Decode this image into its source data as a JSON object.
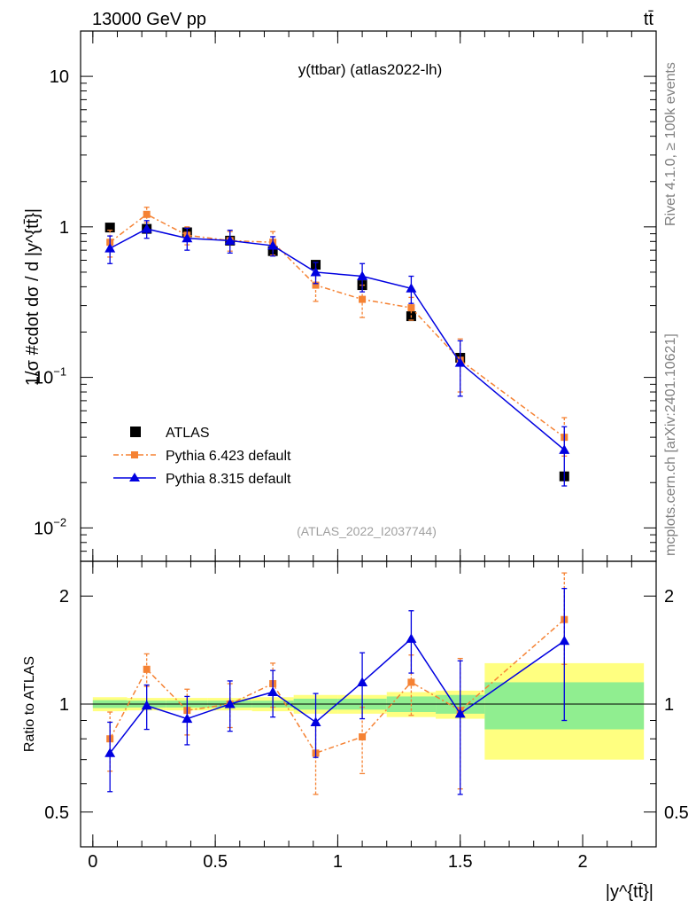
{
  "header": {
    "left": "13000 GeV pp",
    "right": "tt̄"
  },
  "side_labels": {
    "top": "Rivet 4.1.0, ≥ 100k events",
    "bottom": "mcplots.cern.ch [arXiv:2401.10621]"
  },
  "chart_data": {
    "type": "scatter",
    "title": "y(ttbar) (atlas2022-lh)",
    "watermark": "(ATLAS_2022_I2037744)",
    "ylabel": "1/σ #cdot dσ / d |y^{tt̄}|",
    "xlabel": "|y^{tt̄}|",
    "ratio_ylabel": "Ratio to ATLAS",
    "xlim": [
      -0.05,
      2.3
    ],
    "ylim": [
      0.006,
      20
    ],
    "ratio_ylim": [
      0.4,
      2.5
    ],
    "y_ticks": [
      {
        "v": 10,
        "label": "10",
        "sup": ""
      },
      {
        "v": 1,
        "label": "1",
        "sup": ""
      },
      {
        "v": 0.1,
        "label": "10",
        "sup": "−1"
      },
      {
        "v": 0.01,
        "label": "10",
        "sup": "−2"
      }
    ],
    "x_ticks": [
      {
        "v": 0,
        "label": "0"
      },
      {
        "v": 0.5,
        "label": "0.5"
      },
      {
        "v": 1,
        "label": "1"
      },
      {
        "v": 1.5,
        "label": "1.5"
      },
      {
        "v": 2,
        "label": "2"
      }
    ],
    "ratio_ticks": [
      {
        "v": 0.5,
        "label": "0.5"
      },
      {
        "v": 1,
        "label": "1"
      },
      {
        "v": 2,
        "label": "2"
      }
    ],
    "bin_edges": [
      0,
      0.14,
      0.3,
      0.47,
      0.65,
      0.82,
      1.0,
      1.2,
      1.4,
      1.6,
      2.25
    ],
    "x": [
      0.07,
      0.22,
      0.385,
      0.56,
      0.735,
      0.91,
      1.1,
      1.3,
      1.5,
      1.925
    ],
    "data_band": {
      "inner": [
        0.025,
        0.022,
        0.022,
        0.022,
        0.022,
        0.035,
        0.035,
        0.05,
        0.06,
        0.15
      ],
      "outer": [
        0.045,
        0.04,
        0.04,
        0.04,
        0.045,
        0.06,
        0.06,
        0.08,
        0.09,
        0.3
      ]
    },
    "series": [
      {
        "name": "ATLAS",
        "color": "#000000",
        "values": [
          0.99,
          0.97,
          0.92,
          0.81,
          0.69,
          0.56,
          0.41,
          0.255,
          0.135,
          0.022
        ]
      },
      {
        "name": "Pythia 6.423 default",
        "color": "#f58233",
        "values": [
          0.79,
          1.21,
          0.88,
          0.81,
          0.79,
          0.41,
          0.33,
          0.29,
          0.13,
          0.04
        ],
        "err_low": [
          0.16,
          0.14,
          0.12,
          0.12,
          0.14,
          0.09,
          0.08,
          0.05,
          0.05,
          0.01
        ],
        "err_high": [
          0.16,
          0.14,
          0.12,
          0.12,
          0.14,
          0.09,
          0.08,
          0.05,
          0.05,
          0.014
        ],
        "ratio": [
          0.8,
          1.25,
          0.96,
          1.0,
          1.14,
          0.73,
          0.81,
          1.15,
          0.96,
          1.72
        ],
        "ratio_err_low": [
          0.15,
          0.13,
          0.14,
          0.14,
          0.16,
          0.17,
          0.17,
          0.22,
          0.38,
          0.43
        ],
        "ratio_err_high": [
          0.15,
          0.13,
          0.14,
          0.14,
          0.16,
          0.17,
          0.17,
          0.22,
          0.38,
          0.6
        ]
      },
      {
        "name": "Pythia 8.315 default",
        "color": "#0000e0",
        "values": [
          0.72,
          0.97,
          0.84,
          0.81,
          0.75,
          0.5,
          0.47,
          0.39,
          0.125,
          0.033
        ],
        "err_low": [
          0.15,
          0.13,
          0.14,
          0.14,
          0.11,
          0.08,
          0.1,
          0.08,
          0.05,
          0.014
        ],
        "err_high": [
          0.15,
          0.13,
          0.14,
          0.14,
          0.11,
          0.08,
          0.1,
          0.08,
          0.05,
          0.014
        ],
        "ratio": [
          0.73,
          0.99,
          0.91,
          1.0,
          1.08,
          0.89,
          1.15,
          1.52,
          0.94,
          1.5
        ],
        "ratio_err_low": [
          0.16,
          0.14,
          0.14,
          0.16,
          0.16,
          0.18,
          0.24,
          0.3,
          0.38,
          0.6
        ],
        "ratio_err_high": [
          0.16,
          0.14,
          0.14,
          0.16,
          0.16,
          0.18,
          0.24,
          0.3,
          0.38,
          0.6
        ]
      }
    ]
  }
}
